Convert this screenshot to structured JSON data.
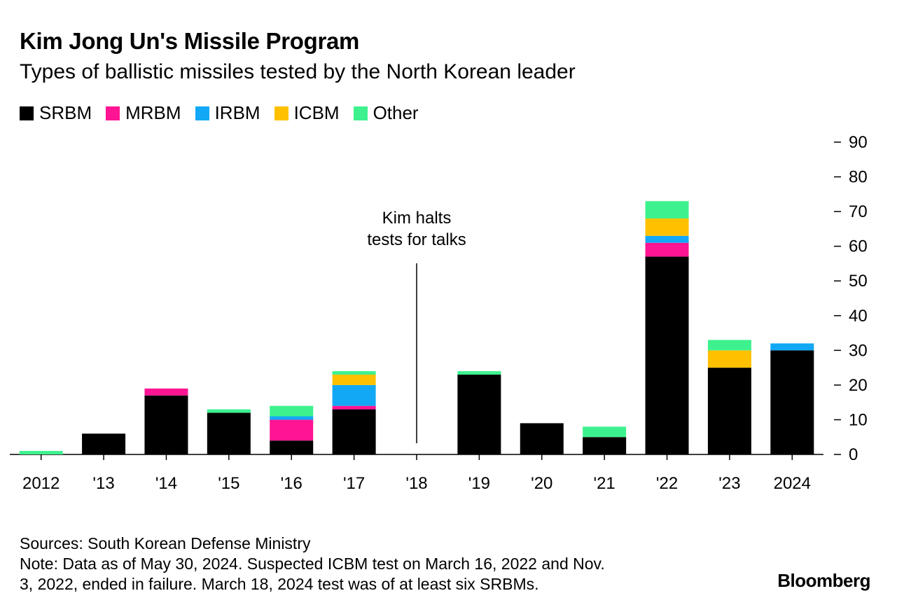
{
  "header": {
    "title": "Kim Jong Un's Missile Program",
    "subtitle": "Types of ballistic missiles tested by the North Korean leader"
  },
  "footer": {
    "sources": "Sources: South Korean Defense Ministry",
    "note_line1": "Note: Data as of May 30, 2024. Suspected ICBM test on March 16, 2022 and Nov.",
    "note_line2": "3, 2022, ended in failure. March 18, 2024 test was of at least six SRBMs.",
    "brand": "Bloomberg"
  },
  "chart_data": {
    "type": "bar",
    "stacked": true,
    "title": "Kim Jong Un's Missile Program",
    "subtitle": "Types of ballistic missiles tested by the North Korean leader",
    "categories": [
      "2012",
      "'13",
      "'14",
      "'15",
      "'16",
      "'17",
      "'18",
      "'19",
      "'20",
      "'21",
      "'22",
      "'23",
      "2024"
    ],
    "series": [
      {
        "name": "SRBM",
        "color": "#000000",
        "values": [
          0,
          6,
          17,
          12,
          4,
          13,
          0,
          23,
          9,
          5,
          57,
          25,
          30
        ]
      },
      {
        "name": "MRBM",
        "color": "#ff1493",
        "values": [
          0,
          0,
          2,
          0,
          6,
          1,
          0,
          0,
          0,
          0,
          4,
          0,
          0
        ]
      },
      {
        "name": "IRBM",
        "color": "#12a8f5",
        "values": [
          0,
          0,
          0,
          0,
          1,
          6,
          0,
          0,
          0,
          0,
          2,
          0,
          2
        ]
      },
      {
        "name": "ICBM",
        "color": "#ffc000",
        "values": [
          0,
          0,
          0,
          0,
          0,
          3,
          0,
          0,
          0,
          0,
          5,
          5,
          0
        ]
      },
      {
        "name": "Other",
        "color": "#3df28e",
        "values": [
          1,
          0,
          0,
          1,
          3,
          1,
          0,
          1,
          0,
          3,
          5,
          3,
          0
        ]
      }
    ],
    "yticks": [
      "0",
      "10",
      "20",
      "30",
      "40",
      "50",
      "60",
      "70",
      "80",
      "90"
    ],
    "ylim": [
      0,
      90
    ],
    "y_axis_side": "right",
    "xlabel": "",
    "ylabel": "",
    "annotation": {
      "category": "'18",
      "line1": "Kim halts",
      "line2": "tests for talks"
    }
  }
}
